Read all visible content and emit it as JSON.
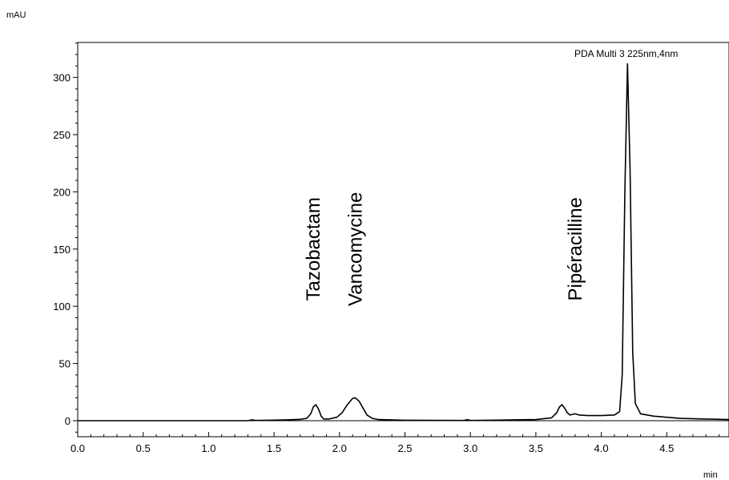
{
  "chart_data": {
    "type": "line",
    "title": "",
    "xlabel": "min",
    "ylabel": "mAU",
    "xlim": [
      0.0,
      5.0
    ],
    "ylim": [
      -10,
      330
    ],
    "x_ticks": [
      "0.0",
      "0.5",
      "1.0",
      "1.5",
      "2.0",
      "2.5",
      "3.0",
      "3.5",
      "4.0",
      "4.5"
    ],
    "y_ticks": [
      "0",
      "50",
      "100",
      "150",
      "200",
      "250",
      "300"
    ],
    "x_minor_step": 0.1,
    "y_minor_step": 10,
    "grid": false,
    "series": [
      {
        "name": "PDA Multi 3 225nm,4nm",
        "color": "#000000",
        "points": [
          [
            0.0,
            0
          ],
          [
            1.3,
            0
          ],
          [
            1.33,
            0.8
          ],
          [
            1.36,
            0.2
          ],
          [
            1.5,
            0.5
          ],
          [
            1.6,
            0.8
          ],
          [
            1.7,
            1.2
          ],
          [
            1.75,
            2
          ],
          [
            1.78,
            6
          ],
          [
            1.8,
            12
          ],
          [
            1.82,
            14
          ],
          [
            1.84,
            10
          ],
          [
            1.86,
            4
          ],
          [
            1.88,
            1.5
          ],
          [
            1.92,
            1.5
          ],
          [
            1.98,
            3
          ],
          [
            2.02,
            7
          ],
          [
            2.06,
            14
          ],
          [
            2.1,
            19.5
          ],
          [
            2.12,
            20
          ],
          [
            2.15,
            17
          ],
          [
            2.18,
            11
          ],
          [
            2.21,
            5
          ],
          [
            2.25,
            2
          ],
          [
            2.3,
            1
          ],
          [
            2.5,
            0.4
          ],
          [
            2.95,
            0.2
          ],
          [
            2.98,
            1
          ],
          [
            3.0,
            0.2
          ],
          [
            3.2,
            0.5
          ],
          [
            3.5,
            1
          ],
          [
            3.62,
            2.5
          ],
          [
            3.66,
            7
          ],
          [
            3.68,
            12
          ],
          [
            3.7,
            14
          ],
          [
            3.72,
            11
          ],
          [
            3.74,
            7
          ],
          [
            3.76,
            5
          ],
          [
            3.78,
            5.5
          ],
          [
            3.8,
            6
          ],
          [
            3.83,
            5
          ],
          [
            3.9,
            4.5
          ],
          [
            4.0,
            4.5
          ],
          [
            4.1,
            5
          ],
          [
            4.14,
            8
          ],
          [
            4.16,
            40
          ],
          [
            4.18,
            200
          ],
          [
            4.2,
            312
          ],
          [
            4.22,
            220
          ],
          [
            4.24,
            60
          ],
          [
            4.26,
            15
          ],
          [
            4.3,
            6
          ],
          [
            4.4,
            4
          ],
          [
            4.5,
            3
          ],
          [
            4.6,
            2
          ],
          [
            4.8,
            1.5
          ],
          [
            5.0,
            1
          ]
        ]
      }
    ],
    "annotations": [
      {
        "text": "Tazobactam",
        "x": 1.81,
        "y": 150,
        "rotation": -90
      },
      {
        "text": "Vancomycine",
        "x": 2.13,
        "y": 150,
        "rotation": -90
      },
      {
        "text": "Pipéracilline",
        "x": 3.81,
        "y": 150,
        "rotation": -90
      },
      {
        "text": "PDA Multi 3 225nm,4nm",
        "x": 4.19,
        "y": 316
      }
    ]
  }
}
